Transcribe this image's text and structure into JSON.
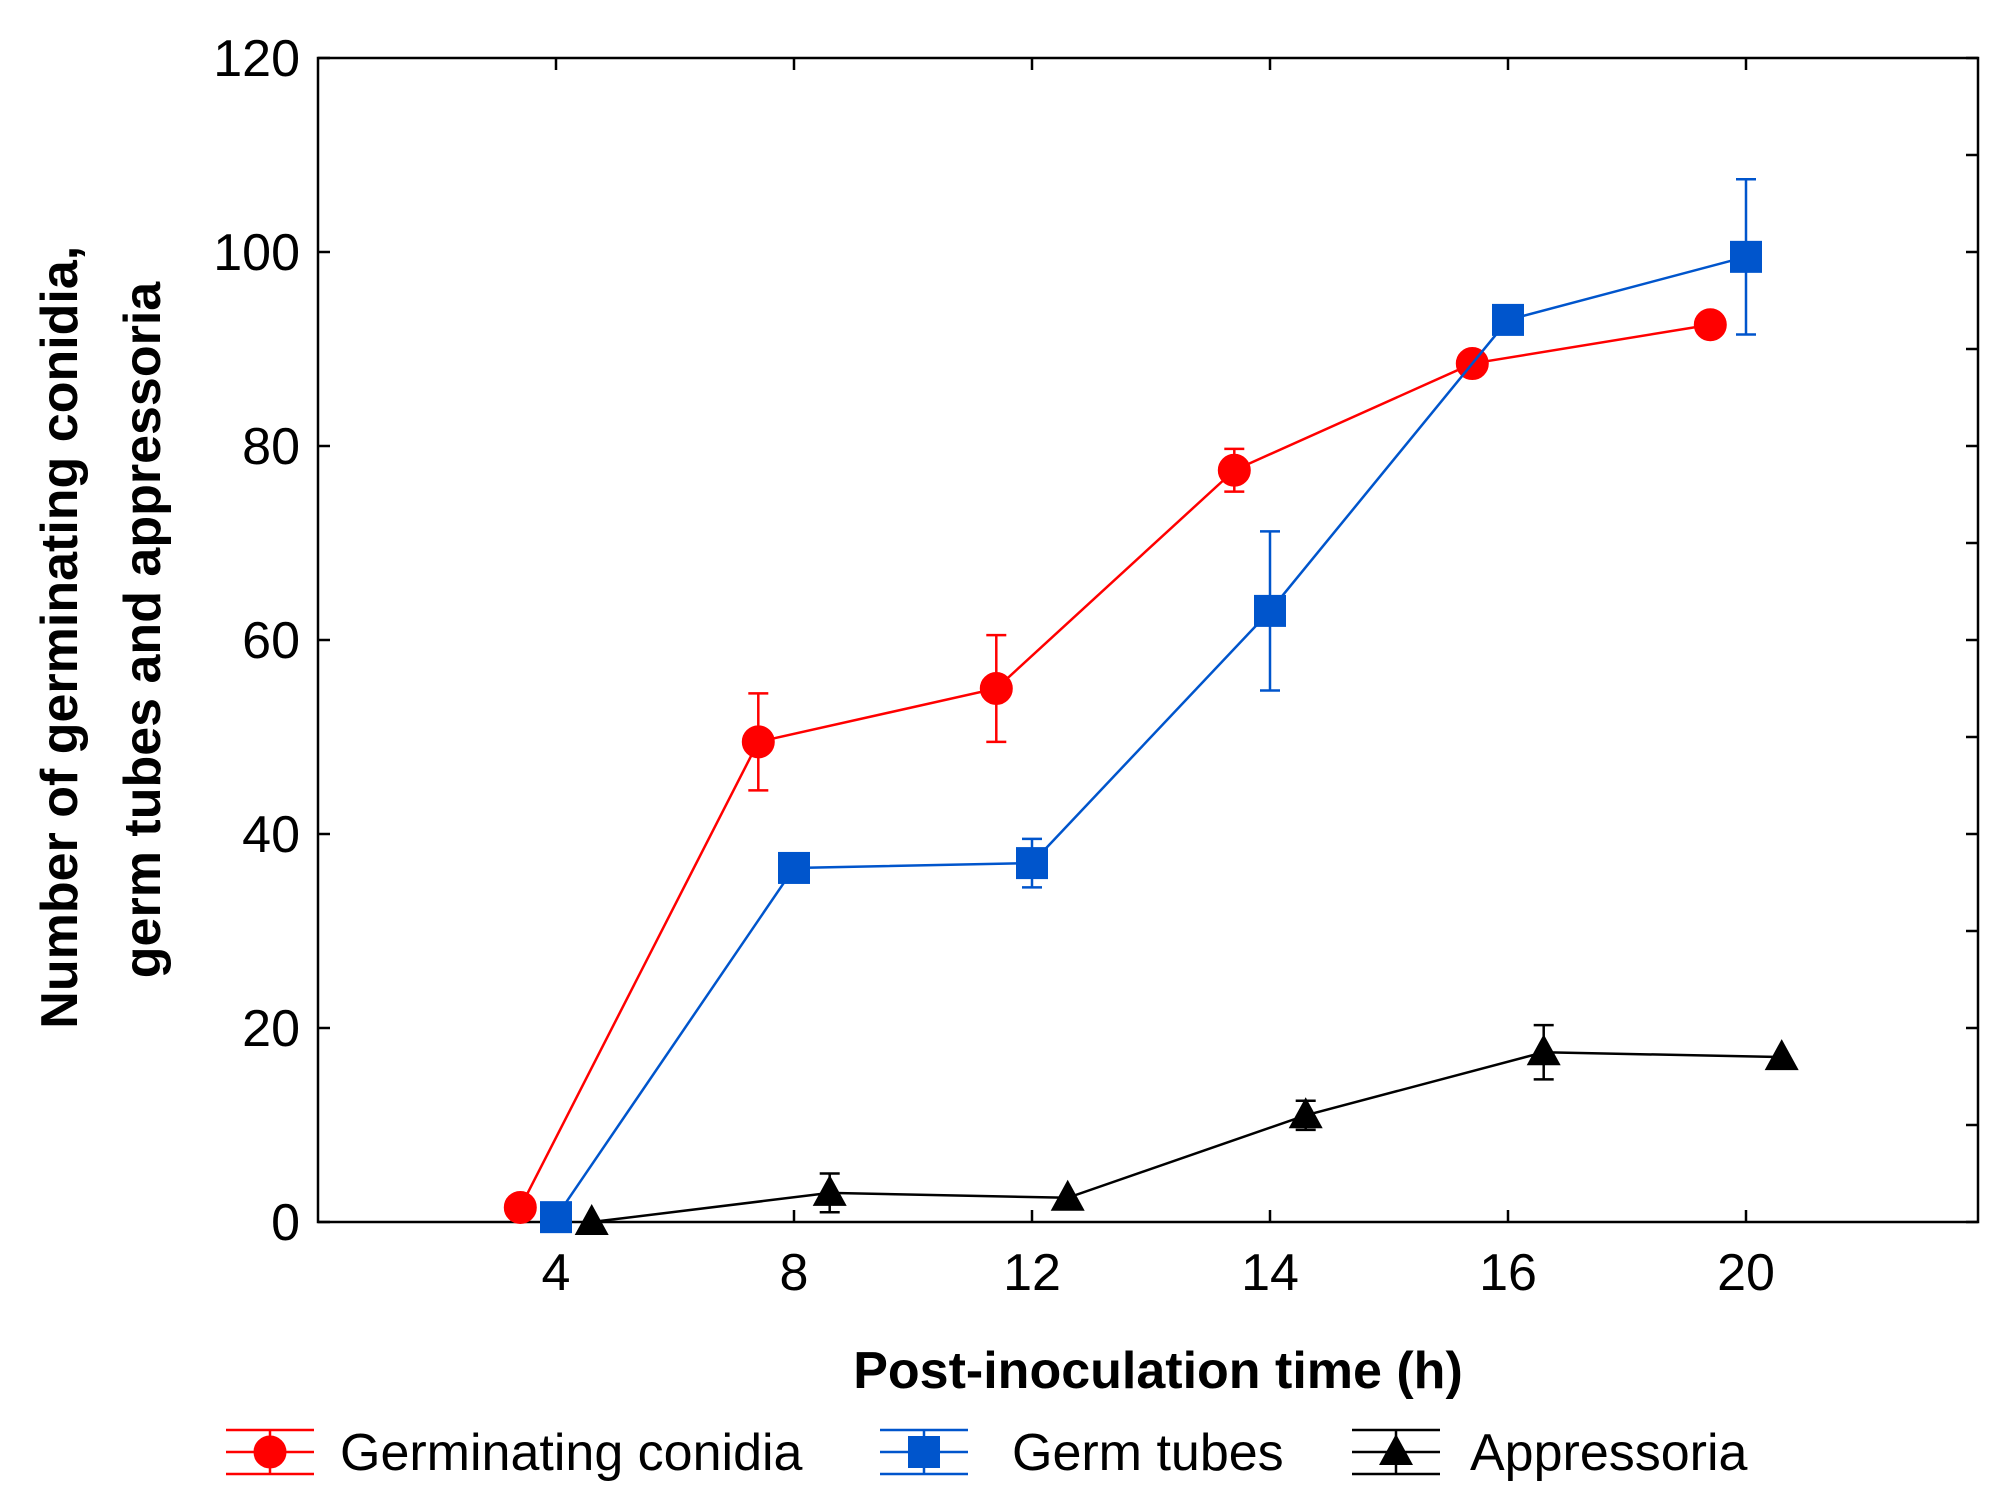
{
  "chart_data": {
    "type": "line",
    "xlabel": "Post-inoculation time (h)",
    "ylabel_lines": [
      "Number of germinating conidia,",
      "germ tubes and appressoria"
    ],
    "categories": [
      "4",
      "8",
      "12",
      "14",
      "16",
      "20"
    ],
    "ylim": [
      0,
      120
    ],
    "yticks": [
      0,
      20,
      40,
      60,
      80,
      100,
      120
    ],
    "grid": false,
    "legend_position": "bottom",
    "series": [
      {
        "name": "Germinating conidia",
        "marker": "circle",
        "color": "#ff0000",
        "offset": -0.15,
        "values": [
          1.5,
          49.5,
          55,
          77.5,
          88.5,
          92.5
        ],
        "errors": [
          0,
          5,
          5.5,
          2.2,
          1,
          1.2
        ]
      },
      {
        "name": "Germ tubes",
        "marker": "square",
        "color": "#0055cc",
        "offset": 0,
        "values": [
          0.5,
          36.5,
          37,
          63,
          93,
          99.5
        ],
        "errors": [
          0,
          0,
          2.5,
          8.2,
          0,
          8
        ]
      },
      {
        "name": "Appressoria",
        "marker": "triangle",
        "color": "#000000",
        "offset": 0.15,
        "values": [
          0,
          3,
          2.5,
          11,
          17.5,
          17
        ],
        "errors": [
          0,
          2,
          0,
          1.5,
          2.8,
          0
        ]
      }
    ]
  }
}
